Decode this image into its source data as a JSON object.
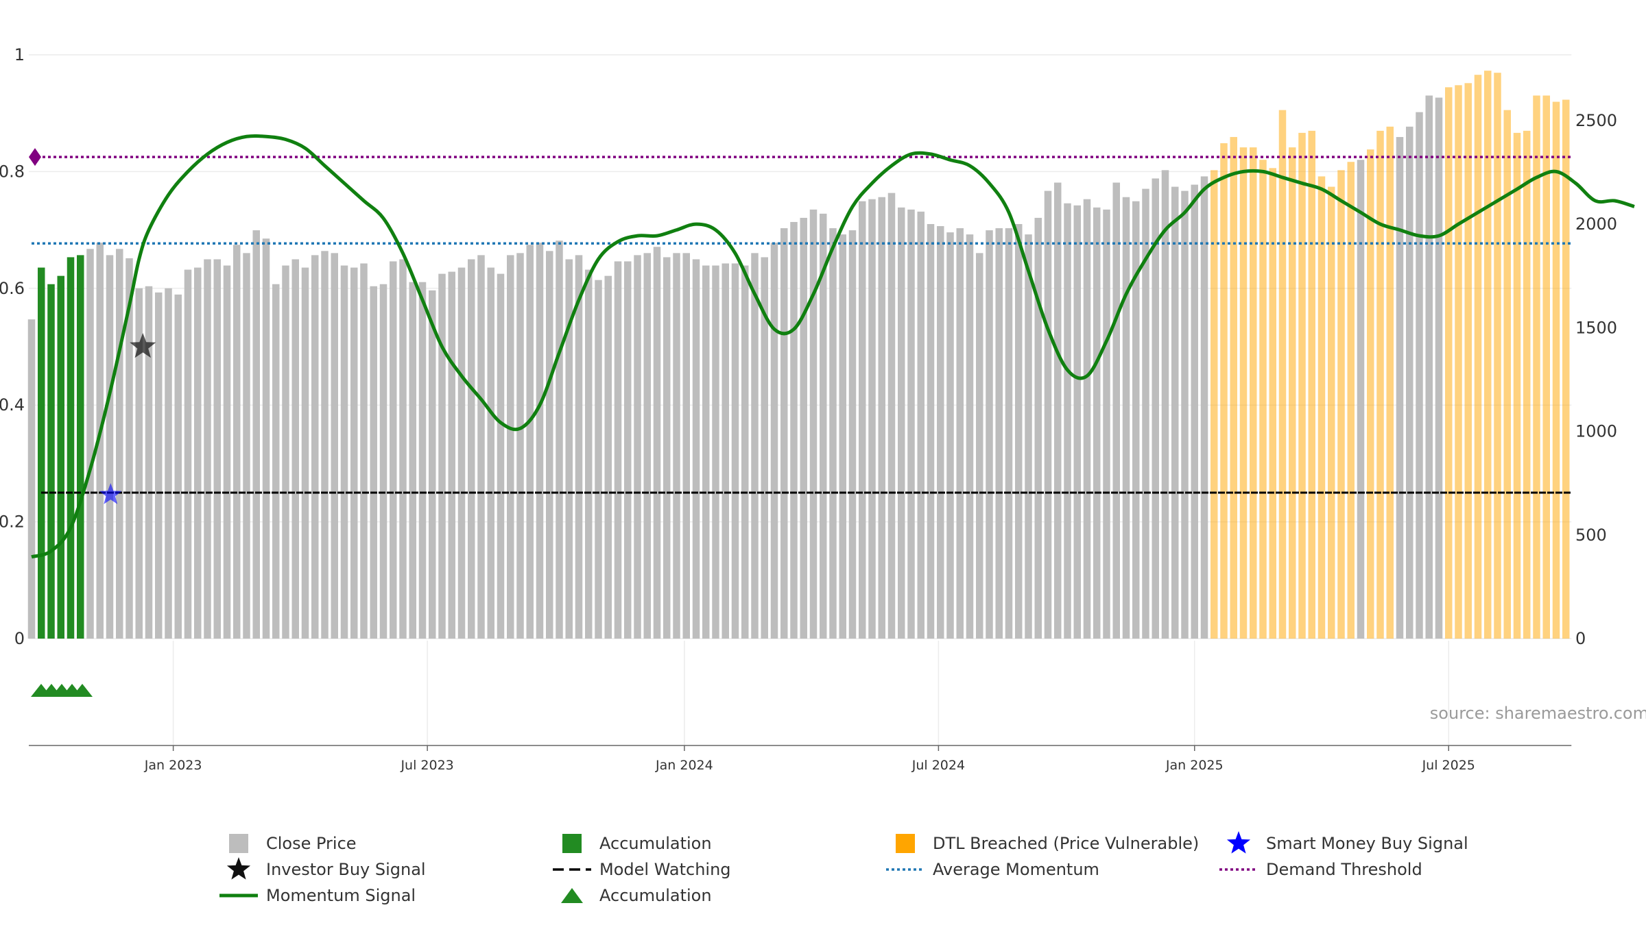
{
  "chart_data": {
    "type": "bar+line",
    "source": "source: sharemaestro.com",
    "x_ticks": [
      "Jan 2023",
      "Jul 2023",
      "Jan 2024",
      "Jul 2024",
      "Jan 2025",
      "Jul 2025"
    ],
    "x_tick_weeks": [
      14.5,
      40.5,
      66.8,
      92.8,
      119,
      145
    ],
    "left_axis": {
      "range": [
        0,
        1
      ],
      "ticks": [
        "0",
        "0.2",
        "0.4",
        "0.6",
        "0.8",
        "1"
      ],
      "tick_values": [
        0,
        0.2,
        0.4,
        0.6,
        0.8,
        1.0
      ]
    },
    "right_axis": {
      "range": [
        0,
        2800
      ],
      "ticks": [
        "0",
        "500",
        "1000",
        "1500",
        "2000",
        "2500"
      ],
      "tick_values": [
        0,
        500,
        1000,
        1500,
        2000,
        2500
      ]
    },
    "close_price_weekly": [
      1540,
      1790,
      1710,
      1750,
      1840,
      1850,
      1880,
      1910,
      1850,
      1880,
      1835,
      1690,
      1700,
      1670,
      1690,
      1660,
      1780,
      1790,
      1830,
      1830,
      1800,
      1900,
      1860,
      1970,
      1930,
      1710,
      1800,
      1830,
      1790,
      1850,
      1870,
      1860,
      1800,
      1790,
      1810,
      1700,
      1710,
      1820,
      1830,
      1720,
      1720,
      1680,
      1760,
      1770,
      1790,
      1830,
      1850,
      1790,
      1760,
      1850,
      1860,
      1900,
      1910,
      1870,
      1920,
      1830,
      1850,
      1780,
      1730,
      1750,
      1820,
      1820,
      1850,
      1860,
      1890,
      1840,
      1860,
      1860,
      1830,
      1800,
      1800,
      1810,
      1810,
      1800,
      1860,
      1840,
      1910,
      1980,
      2010,
      2030,
      2070,
      2050,
      1980,
      1950,
      1970,
      2110,
      2120,
      2130,
      2150,
      2080,
      2070,
      2060,
      2000,
      1990,
      1960,
      1980,
      1950,
      1860,
      1970,
      1980,
      1980,
      2000,
      1950,
      2030,
      2160,
      2200,
      2100,
      2090,
      2120,
      2080,
      2070,
      2200,
      2130,
      2110,
      2170,
      2220,
      2260,
      2180,
      2160,
      2190,
      2230,
      2260,
      2390,
      2420,
      2370,
      2370,
      2310,
      2270,
      2550,
      2370,
      2440,
      2450,
      2230,
      2180,
      2260,
      2300,
      2310,
      2360,
      2450,
      2470,
      2420,
      2470,
      2540,
      2620,
      2610,
      2660,
      2670,
      2680,
      2720,
      2740,
      2730,
      2550,
      2440,
      2450,
      2620,
      2620,
      2590,
      2600
    ],
    "close_price_scaling_note": "bar heights follow close price (right axis units, approx)",
    "bar_colors_by_week": {
      "accumulation": [
        1,
        5
      ],
      "dtl_breached": [
        [
          121,
          135
        ],
        [
          137,
          139
        ],
        [
          145,
          157
        ]
      ]
    },
    "momentum_signal": [
      [
        0,
        0.14
      ],
      [
        2,
        0.15
      ],
      [
        4,
        0.19
      ],
      [
        6,
        0.29
      ],
      [
        8,
        0.42
      ],
      [
        10,
        0.57
      ],
      [
        11,
        0.65
      ],
      [
        12,
        0.7
      ],
      [
        14,
        0.76
      ],
      [
        16,
        0.8
      ],
      [
        18,
        0.83
      ],
      [
        20,
        0.85
      ],
      [
        22,
        0.86
      ],
      [
        24,
        0.86
      ],
      [
        26,
        0.855
      ],
      [
        28,
        0.84
      ],
      [
        30,
        0.81
      ],
      [
        32,
        0.78
      ],
      [
        34,
        0.75
      ],
      [
        36,
        0.72
      ],
      [
        38,
        0.66
      ],
      [
        40,
        0.58
      ],
      [
        42,
        0.5
      ],
      [
        44,
        0.45
      ],
      [
        46,
        0.41
      ],
      [
        48,
        0.37
      ],
      [
        50,
        0.36
      ],
      [
        52,
        0.4
      ],
      [
        54,
        0.49
      ],
      [
        56,
        0.58
      ],
      [
        58,
        0.65
      ],
      [
        60,
        0.68
      ],
      [
        62,
        0.69
      ],
      [
        64,
        0.69
      ],
      [
        66,
        0.7
      ],
      [
        68,
        0.71
      ],
      [
        70,
        0.7
      ],
      [
        72,
        0.66
      ],
      [
        74,
        0.59
      ],
      [
        76,
        0.53
      ],
      [
        78,
        0.53
      ],
      [
        80,
        0.59
      ],
      [
        82,
        0.67
      ],
      [
        84,
        0.74
      ],
      [
        86,
        0.78
      ],
      [
        88,
        0.81
      ],
      [
        90,
        0.83
      ],
      [
        92,
        0.83
      ],
      [
        94,
        0.82
      ],
      [
        96,
        0.81
      ],
      [
        98,
        0.78
      ],
      [
        100,
        0.73
      ],
      [
        102,
        0.63
      ],
      [
        104,
        0.53
      ],
      [
        106,
        0.46
      ],
      [
        108,
        0.45
      ],
      [
        110,
        0.51
      ],
      [
        112,
        0.59
      ],
      [
        114,
        0.65
      ],
      [
        116,
        0.7
      ],
      [
        118,
        0.73
      ],
      [
        120,
        0.77
      ],
      [
        122,
        0.79
      ],
      [
        124,
        0.8
      ],
      [
        126,
        0.8
      ],
      [
        128,
        0.79
      ],
      [
        130,
        0.78
      ],
      [
        132,
        0.77
      ],
      [
        134,
        0.75
      ],
      [
        136,
        0.73
      ],
      [
        138,
        0.71
      ],
      [
        140,
        0.7
      ],
      [
        142,
        0.69
      ],
      [
        144,
        0.69
      ],
      [
        146,
        0.71
      ],
      [
        148,
        0.73
      ],
      [
        150,
        0.75
      ],
      [
        152,
        0.77
      ],
      [
        154,
        0.79
      ],
      [
        156,
        0.8
      ],
      [
        158,
        0.78
      ],
      [
        160,
        0.75
      ],
      [
        162,
        0.75
      ],
      [
        164,
        0.74
      ]
    ],
    "average_momentum": 0.677,
    "demand_threshold": 0.825,
    "model_watching": 0.25,
    "investor_buy_signal": {
      "week": 9,
      "value": 0.5
    },
    "smart_money_buy_signal": {
      "week": 5,
      "value": 0.25
    },
    "demand_threshold_marker": {
      "week": 0,
      "value": 0.825
    },
    "accumulation_markers_weeks": [
      1,
      2,
      3,
      4,
      5
    ],
    "colors": {
      "close_price": "#bdbdbd",
      "accumulation": "#228b22",
      "dtl_breached": "#ffa500",
      "momentum": "#108010",
      "average_momentum": "#1f77b4",
      "demand_threshold": "#800080",
      "model_watching": "#000000",
      "smart_money": "#0000ff",
      "investor": "#111111"
    },
    "legend": [
      {
        "label": "Close Price",
        "symbol": "square-grey"
      },
      {
        "label": "Accumulation",
        "symbol": "square-green"
      },
      {
        "label": "DTL Breached (Price Vulnerable)",
        "symbol": "square-orange"
      },
      {
        "label": "Smart Money Buy Signal",
        "symbol": "star-blue"
      },
      {
        "label": "Investor Buy Signal",
        "symbol": "star-black"
      },
      {
        "label": "Model Watching",
        "symbol": "dash-black"
      },
      {
        "label": "Average Momentum",
        "symbol": "dot-blue"
      },
      {
        "label": "Demand Threshold",
        "symbol": "dot-purple"
      },
      {
        "label": "Momentum Signal",
        "symbol": "line-green"
      },
      {
        "label": "Accumulation",
        "symbol": "triangle-green"
      }
    ]
  }
}
